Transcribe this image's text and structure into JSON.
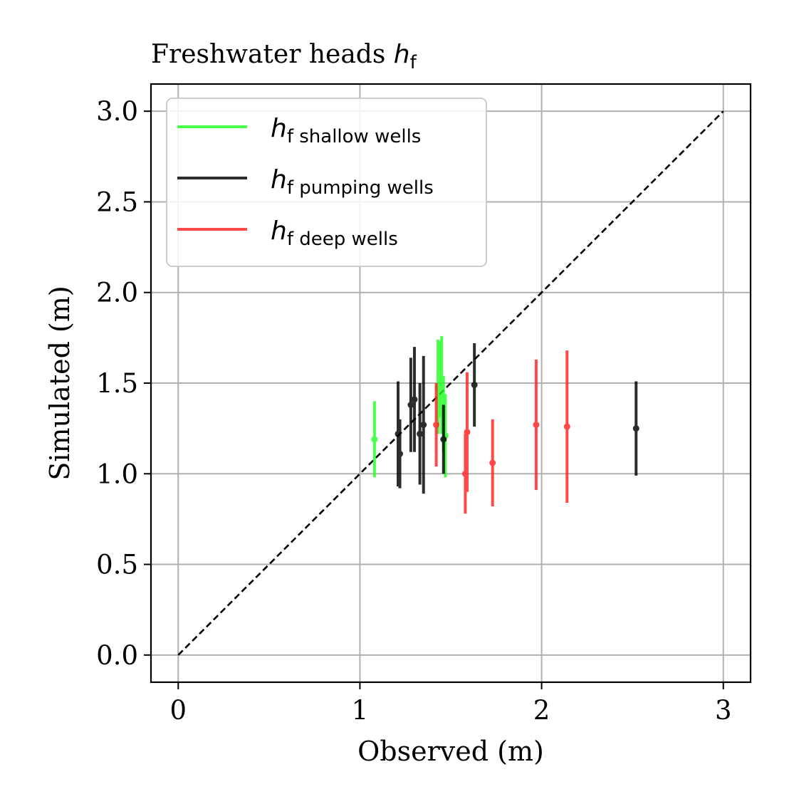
{
  "chart_data": {
    "type": "scatter",
    "title_main": "Freshwater heads ",
    "title_var": "h",
    "title_sub": "f",
    "xlabel": "Observed (m)",
    "ylabel": "Simulated (m)",
    "xlim": [
      -0.15,
      3.15
    ],
    "ylim": [
      -0.15,
      3.15
    ],
    "xticks": [
      0,
      1,
      2,
      3
    ],
    "xtick_labels": [
      "0",
      "1",
      "2",
      "3"
    ],
    "yticks": [
      0.0,
      0.5,
      1.0,
      1.5,
      2.0,
      2.5,
      3.0
    ],
    "ytick_labels": [
      "0.0",
      "0.5",
      "1.0",
      "1.5",
      "2.0",
      "2.5",
      "3.0"
    ],
    "grid": true,
    "legend_position": "upper-left",
    "one_to_one_line": {
      "from": [
        0,
        0
      ],
      "to": [
        3,
        3
      ],
      "color": "#000000",
      "style": "dashed"
    },
    "series": [
      {
        "name_var": "h",
        "name_sub": "f shallow wells",
        "color": "#22ff22",
        "points": [
          {
            "x": 1.08,
            "y": 1.19,
            "err": 0.21
          },
          {
            "x": 1.43,
            "y": 1.48,
            "err": 0.26
          },
          {
            "x": 1.44,
            "y": 1.52,
            "err": 0.21
          },
          {
            "x": 1.45,
            "y": 1.49,
            "err": 0.27
          },
          {
            "x": 1.47,
            "y": 1.21,
            "err": 0.23
          },
          {
            "x": 1.46,
            "y": 1.33,
            "err": 0.21
          }
        ]
      },
      {
        "name_var": "h",
        "name_sub": "f pumping wells",
        "color": "#000000",
        "points": [
          {
            "x": 1.21,
            "y": 1.22,
            "err": 0.29
          },
          {
            "x": 1.22,
            "y": 1.11,
            "err": 0.19
          },
          {
            "x": 1.28,
            "y": 1.38,
            "err": 0.26
          },
          {
            "x": 1.3,
            "y": 1.41,
            "err": 0.29
          },
          {
            "x": 1.33,
            "y": 1.22,
            "err": 0.28
          },
          {
            "x": 1.35,
            "y": 1.27,
            "err": 0.38
          },
          {
            "x": 1.46,
            "y": 1.19,
            "err": 0.19
          },
          {
            "x": 1.63,
            "y": 1.49,
            "err": 0.23
          },
          {
            "x": 2.52,
            "y": 1.25,
            "err": 0.26
          }
        ]
      },
      {
        "name_var": "h",
        "name_sub": "f deep wells",
        "color": "#ff2222",
        "points": [
          {
            "x": 1.42,
            "y": 1.27,
            "err": 0.23
          },
          {
            "x": 1.58,
            "y": 1.0,
            "err": 0.22
          },
          {
            "x": 1.59,
            "y": 1.23,
            "err": 0.33
          },
          {
            "x": 1.73,
            "y": 1.06,
            "err": 0.24
          },
          {
            "x": 1.97,
            "y": 1.27,
            "err": 0.36
          },
          {
            "x": 2.14,
            "y": 1.26,
            "err": 0.42
          }
        ]
      }
    ]
  }
}
